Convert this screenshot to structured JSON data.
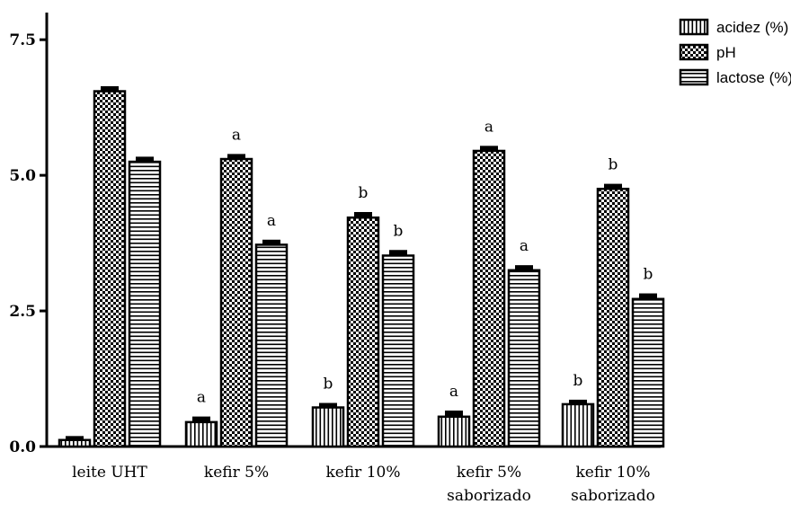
{
  "chart_data": {
    "type": "bar",
    "title": "",
    "xlabel": "",
    "ylabel": "",
    "ylim": [
      0,
      8.0
    ],
    "yticks": [
      0.0,
      2.5,
      5.0,
      7.5
    ],
    "ytick_labels": [
      "0.0",
      "2.5",
      "5.0",
      "7.5"
    ],
    "categories": [
      [
        "leite UHT"
      ],
      [
        "kefir 5%"
      ],
      [
        "kefir 10%"
      ],
      [
        "kefir 5%",
        "saborizado"
      ],
      [
        "kefir 10%",
        "saborizado"
      ]
    ],
    "series": [
      {
        "name": "acidez (%)",
        "pattern": "vertical-stripes",
        "values": [
          0.12,
          0.45,
          0.72,
          0.55,
          0.78
        ],
        "errors": [
          0.04,
          0.07,
          0.05,
          0.08,
          0.05
        ],
        "annotations": [
          "",
          "a",
          "b",
          "a",
          "b"
        ]
      },
      {
        "name": "pH",
        "pattern": "checkerboard",
        "values": [
          6.55,
          5.3,
          4.22,
          5.45,
          4.75
        ],
        "errors": [
          0.06,
          0.06,
          0.07,
          0.06,
          0.06
        ],
        "annotations": [
          "",
          "a",
          "b",
          "a",
          "b"
        ]
      },
      {
        "name": "lactose (%)",
        "pattern": "horizontal-stripes",
        "values": [
          5.25,
          3.72,
          3.52,
          3.25,
          2.72
        ],
        "errors": [
          0.06,
          0.06,
          0.07,
          0.06,
          0.07
        ],
        "annotations": [
          "",
          "a",
          "b",
          "a",
          "b"
        ]
      }
    ],
    "legend_position": "top-right",
    "grid": false
  }
}
